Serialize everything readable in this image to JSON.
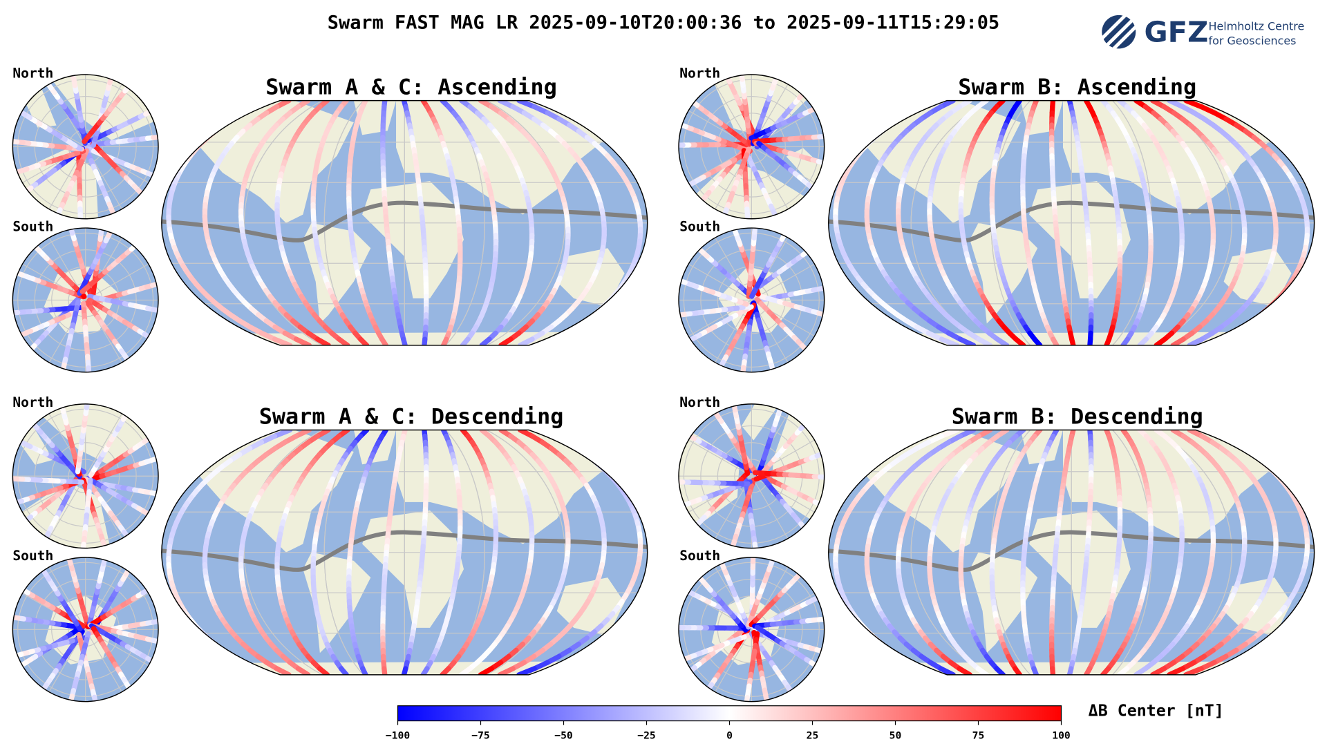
{
  "title": "Swarm FAST MAG LR 2025-09-10T20:00:36 to 2025-09-11T15:29:05",
  "logo": {
    "mark": "GFZ",
    "line1": "Helmholtz Centre",
    "line2": "for Geosciences"
  },
  "panels": [
    {
      "title": "Swarm A & C: Ascending",
      "north": "North",
      "south": "South"
    },
    {
      "title": "Swarm B: Ascending",
      "north": "North",
      "south": "South"
    },
    {
      "title": "Swarm A & C: Descending",
      "north": "North",
      "south": "South"
    },
    {
      "title": "Swarm B: Descending",
      "north": "North",
      "south": "South"
    }
  ],
  "colorbar": {
    "label": "ΔB Center [nT]",
    "lim": [
      -100,
      100
    ],
    "ticks": [
      {
        "value": -100,
        "label": "−100"
      },
      {
        "value": -75,
        "label": "−75"
      },
      {
        "value": -50,
        "label": "−50"
      },
      {
        "value": -25,
        "label": "−25"
      },
      0,
      25,
      50,
      75,
      100
    ]
  }
}
